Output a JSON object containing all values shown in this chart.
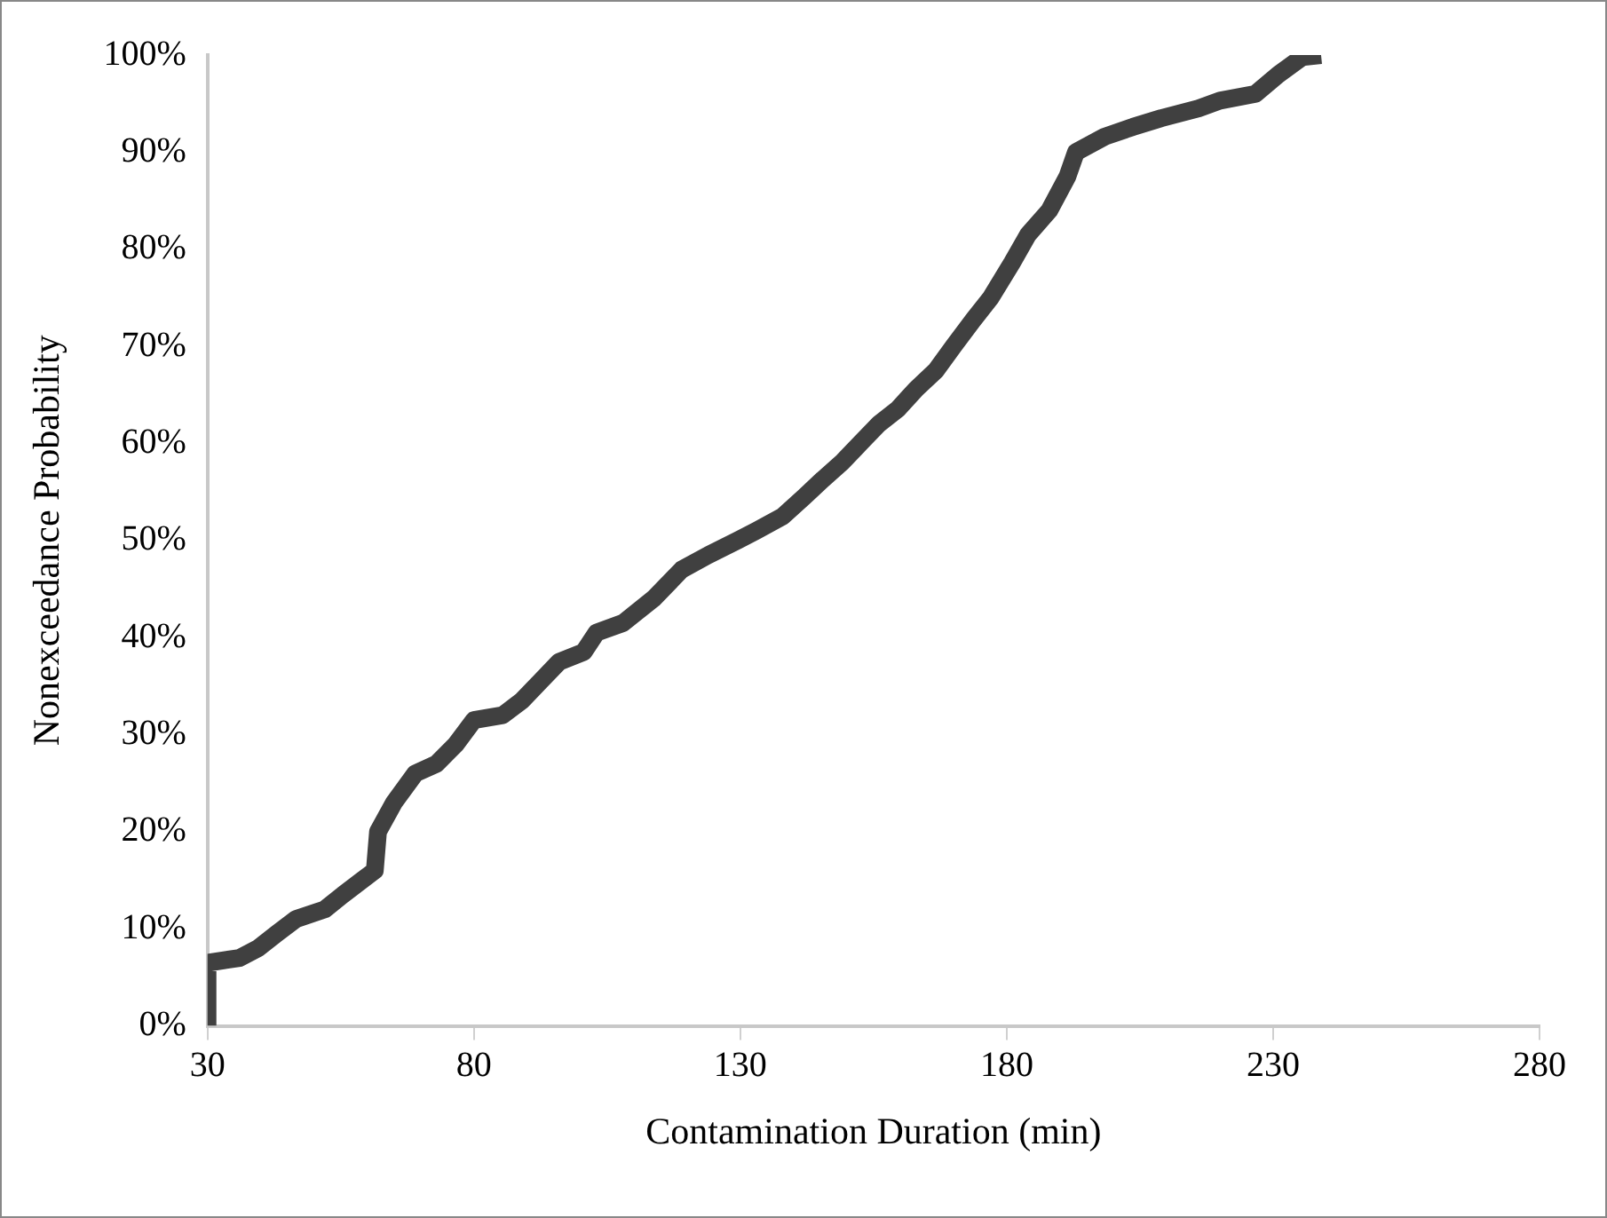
{
  "chart_data": {
    "type": "line",
    "xlabel": "Contamination Duration (min)",
    "ylabel": "Nonexceedance Probability",
    "xlim": [
      30,
      280
    ],
    "xticks": [
      30,
      80,
      130,
      180,
      230,
      280
    ],
    "ylim": [
      0,
      100
    ],
    "yticks": [
      {
        "value": 0,
        "label": "0%"
      },
      {
        "value": 10,
        "label": "10%"
      },
      {
        "value": 20,
        "label": "20%"
      },
      {
        "value": 30,
        "label": "30%"
      },
      {
        "value": 40,
        "label": "40%"
      },
      {
        "value": 50,
        "label": "50%"
      },
      {
        "value": 60,
        "label": "60%"
      },
      {
        "value": 70,
        "label": "70%"
      },
      {
        "value": 80,
        "label": "80%"
      },
      {
        "value": 90,
        "label": "90%"
      },
      {
        "value": 100,
        "label": "100%"
      }
    ],
    "grid": false,
    "legend": false,
    "marker": "none",
    "line_style": "solid",
    "series": [
      {
        "color": "#404040",
        "x": [
          30,
          30,
          36,
          39.5,
          43,
          46.6,
          52,
          55.4,
          59,
          61.4,
          62,
          65,
          69,
          73,
          76.6,
          80,
          85.4,
          89,
          92.5,
          96,
          100.6,
          103,
          108,
          113.7,
          119,
          124,
          129.5,
          133,
          138,
          142,
          145.5,
          149,
          152.5,
          156,
          159.5,
          163,
          166.7,
          170,
          173.7,
          177,
          181,
          184,
          188,
          191.4,
          193,
          198.4,
          203.7,
          209,
          216,
          220,
          226.7,
          231,
          235.5,
          239
        ],
        "values": [
          0,
          6.5,
          7,
          8,
          9.5,
          11,
          12,
          13.5,
          15,
          16,
          20,
          23,
          26,
          27,
          29,
          31.5,
          32,
          33.5,
          35.5,
          37.5,
          38.5,
          40.5,
          41.5,
          44,
          47,
          48.5,
          50,
          51,
          52.5,
          54.5,
          56.3,
          58,
          60,
          62,
          63.5,
          65.6,
          67.5,
          70,
          72.7,
          75,
          78.6,
          81.5,
          84,
          87.5,
          90,
          91.6,
          92.6,
          93.5,
          94.5,
          95.3,
          96,
          98,
          99.8,
          100
        ]
      }
    ]
  }
}
